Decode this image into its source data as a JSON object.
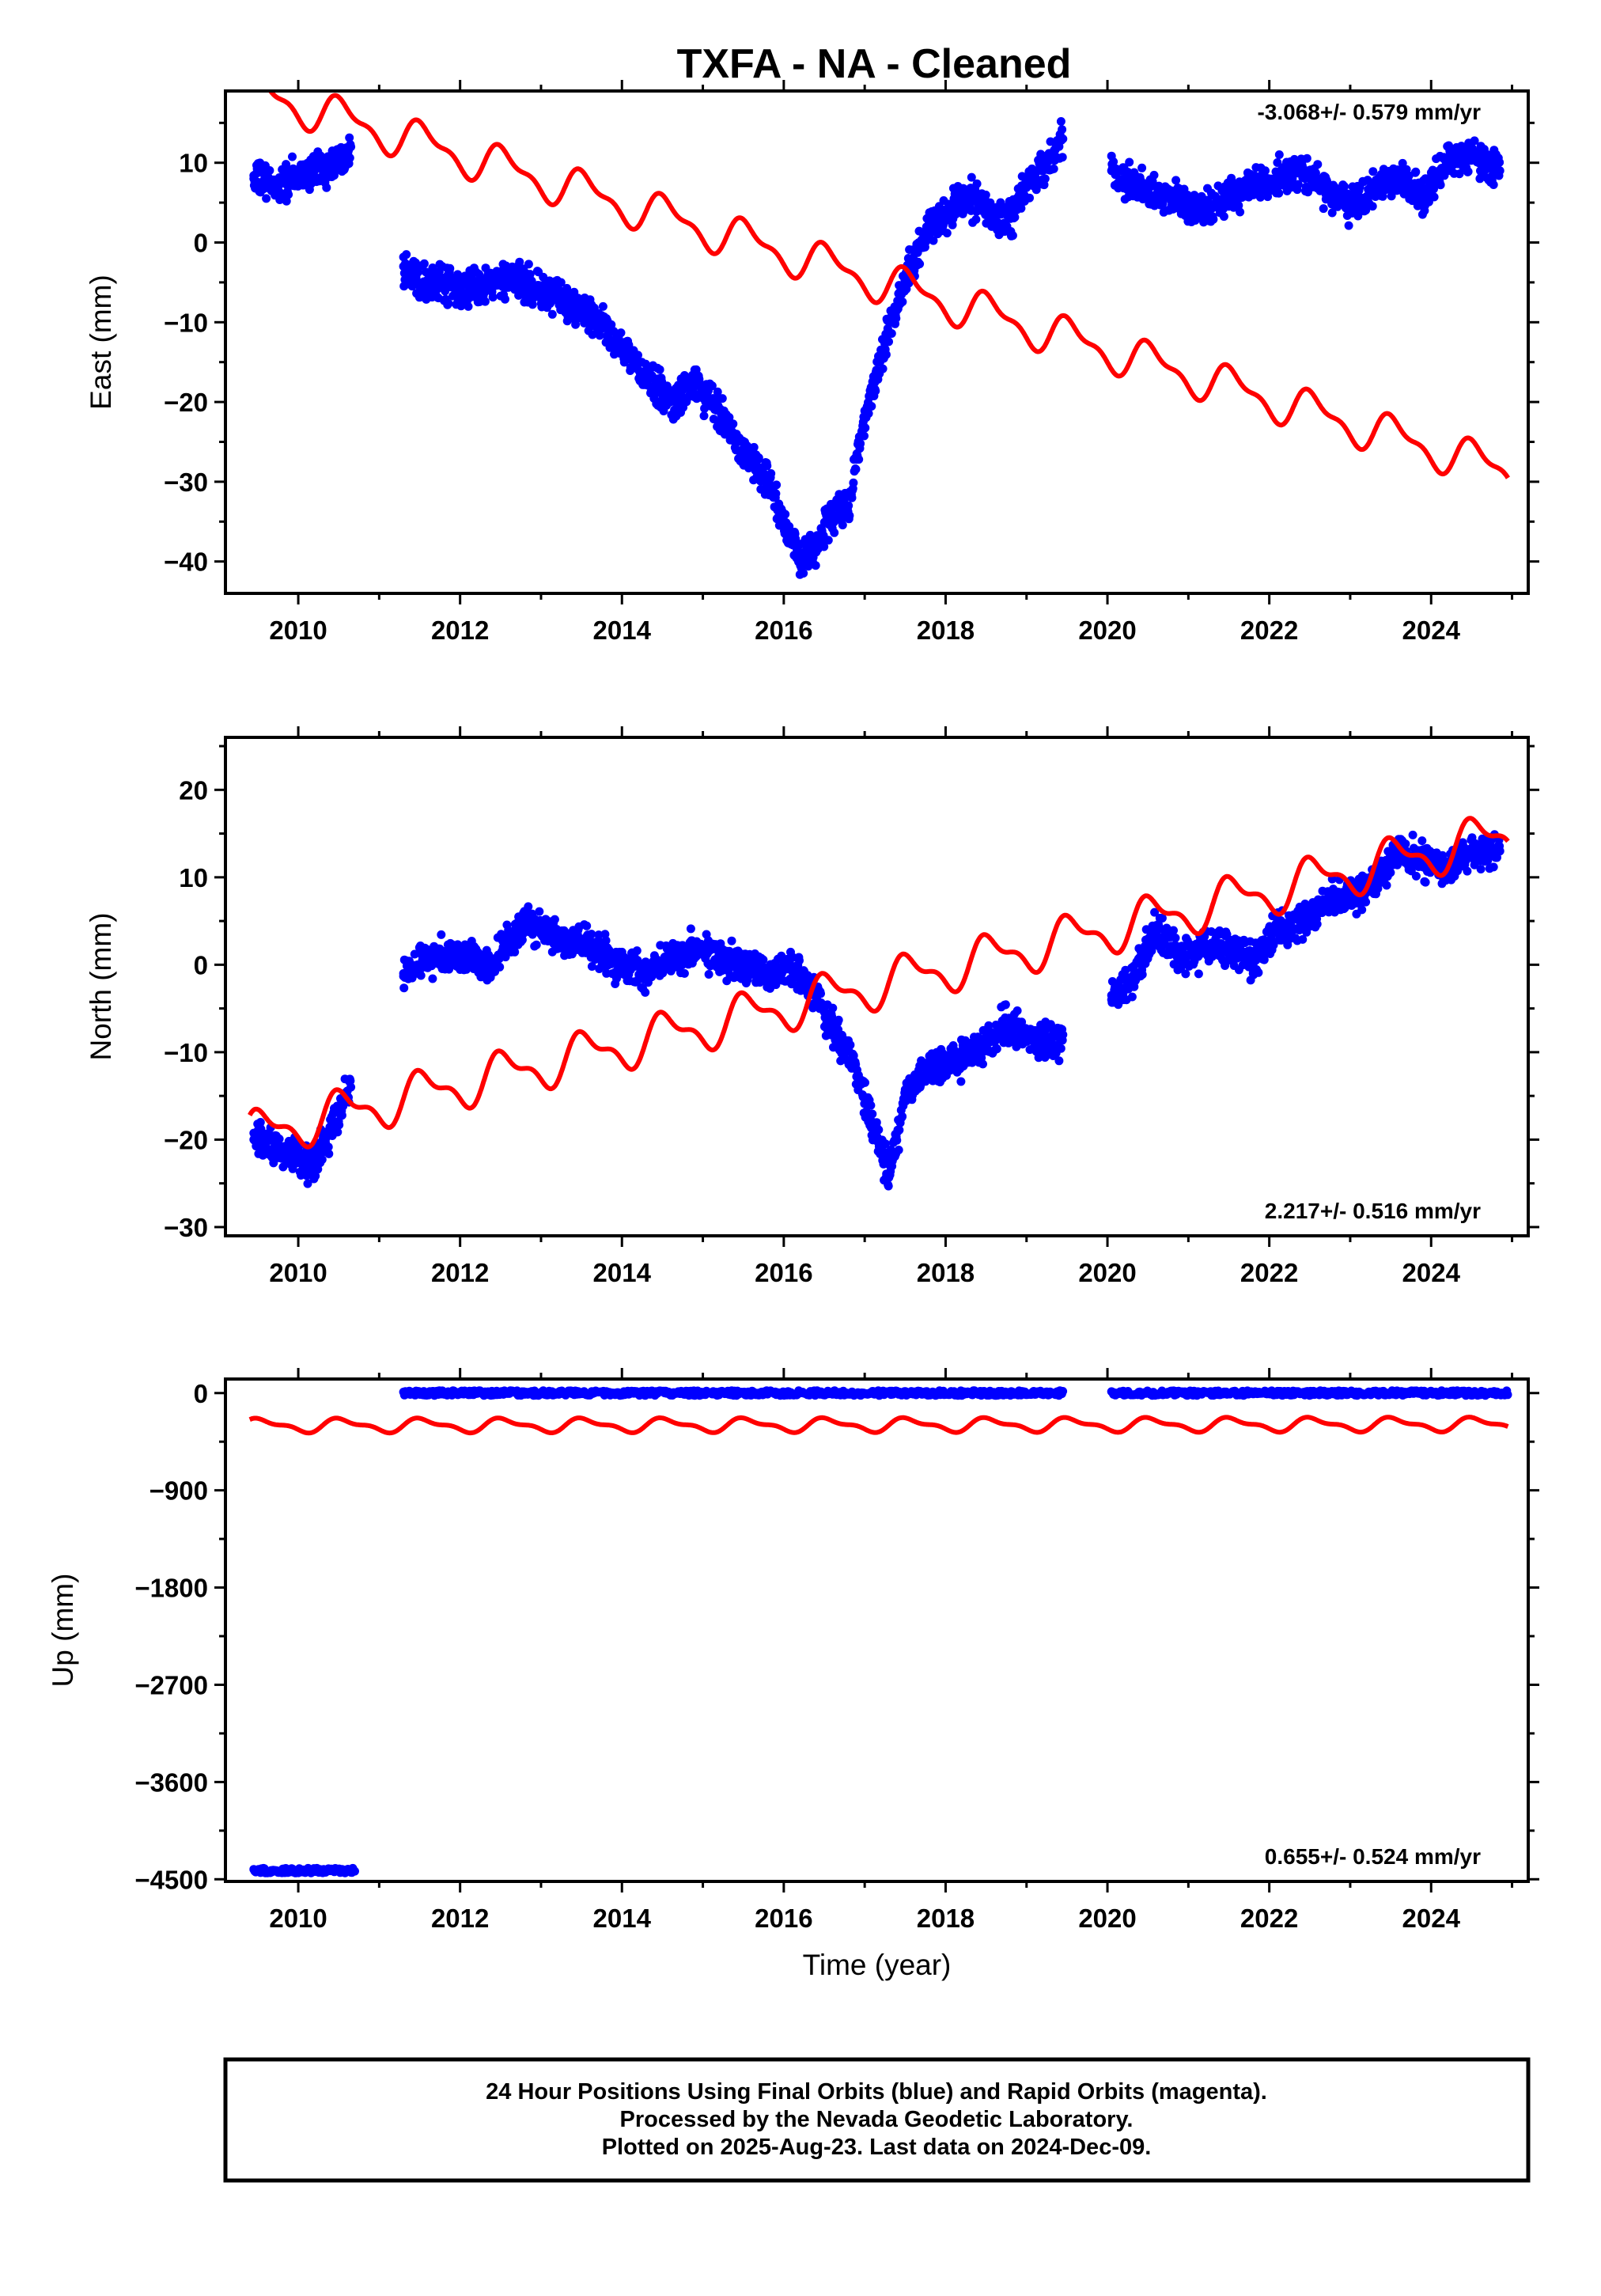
{
  "title": "TXFA  - NA - Cleaned",
  "footer": {
    "line1": "24 Hour Positions Using Final Orbits (blue) and Rapid Orbits (magenta).",
    "line2": "Processed by the Nevada Geodetic Laboratory.",
    "line3": "Plotted on 2025-Aug-23. Last data on 2024-Dec-09."
  },
  "colors": {
    "final": "#0000ff",
    "model": "#ff0000",
    "axis": "#000000"
  },
  "chart_data": [
    {
      "type": "scatter",
      "ylabel": "East (mm)",
      "xlabel": "",
      "rate_label": "-3.068+/- 0.579 mm/yr",
      "rate_position": "top-right",
      "xlim": [
        2009.1,
        2025.2
      ],
      "ylim": [
        -44,
        19
      ],
      "x_ticks": [
        2010,
        2012,
        2014,
        2016,
        2018,
        2020,
        2022,
        2024
      ],
      "y_ticks": [
        10,
        0,
        -10,
        -20,
        -30,
        -40
      ],
      "grid": false,
      "series": [
        {
          "kind": "points",
          "color": "#0000ff",
          "x": [
            2009.45,
            2009.7,
            2009.95,
            2010.2,
            2010.45,
            2010.65,
            2011.3,
            2011.6,
            2012.0,
            2012.4,
            2012.8,
            2013.2,
            2013.6,
            2014.0,
            2014.3,
            2014.6,
            2014.9,
            2015.2,
            2015.5,
            2015.8,
            2016.0,
            2016.2,
            2016.4,
            2016.6,
            2016.8,
            2017.0,
            2017.2,
            2017.4,
            2017.6,
            2017.8,
            2018.0,
            2018.2,
            2018.4,
            2018.6,
            2018.8,
            2019.0,
            2019.2,
            2019.45,
            2020.05,
            2020.3,
            2020.6,
            2020.9,
            2021.2,
            2021.5,
            2021.8,
            2022.1,
            2022.4,
            2022.7,
            2023.0,
            2023.3,
            2023.6,
            2023.9,
            2024.2,
            2024.5,
            2024.85
          ],
          "y": [
            8,
            7,
            8,
            9,
            10,
            12,
            -3,
            -5,
            -6,
            -5,
            -5,
            -7,
            -9,
            -13,
            -17,
            -20,
            -18,
            -21,
            -26,
            -30,
            -35,
            -40,
            -38,
            -34,
            -33,
            -22,
            -14,
            -8,
            -2,
            2,
            3,
            6,
            5,
            3,
            3,
            7,
            9,
            13,
            9,
            7,
            6,
            5,
            4,
            6,
            7,
            8,
            9,
            6,
            5,
            7,
            8,
            6,
            10,
            11,
            9
          ]
        },
        {
          "kind": "line",
          "color": "#ff0000",
          "name": "",
          "trend_rate": -3.068,
          "seasonal_amplitude": 2.2,
          "x": [
            2009.4,
            2011.0,
            2012.0,
            2013.0,
            2014.0,
            2015.0,
            2016.0,
            2017.0,
            2018.0,
            2019.0,
            2020.0,
            2021.0,
            2022.0,
            2023.0,
            2024.0,
            2024.95
          ],
          "y": [
            19.0,
            14.1,
            11.0,
            7.9,
            4.9,
            1.8,
            -1.3,
            -4.3,
            -7.4,
            -10.5,
            -13.5,
            -16.6,
            -19.7,
            -22.8,
            -25.8,
            -28.7
          ]
        }
      ]
    },
    {
      "type": "scatter",
      "ylabel": "North (mm)",
      "xlabel": "",
      "rate_label": "2.217+/- 0.516 mm/yr",
      "rate_position": "bottom-right",
      "xlim": [
        2009.1,
        2025.2
      ],
      "ylim": [
        -31,
        26
      ],
      "x_ticks": [
        2010,
        2012,
        2014,
        2016,
        2018,
        2020,
        2022,
        2024
      ],
      "y_ticks": [
        20,
        10,
        0,
        -10,
        -20,
        -30
      ],
      "grid": false,
      "series": [
        {
          "kind": "points",
          "color": "#0000ff",
          "x": [
            2009.45,
            2009.7,
            2009.95,
            2010.2,
            2010.45,
            2010.65,
            2011.3,
            2011.6,
            2012.0,
            2012.4,
            2012.8,
            2013.2,
            2013.6,
            2014.0,
            2014.3,
            2014.6,
            2014.9,
            2015.2,
            2015.5,
            2015.8,
            2016.0,
            2016.3,
            2016.6,
            2016.9,
            2017.1,
            2017.3,
            2017.5,
            2017.8,
            2018.1,
            2018.4,
            2018.7,
            2019.0,
            2019.3,
            2019.45,
            2020.05,
            2020.3,
            2020.6,
            2020.9,
            2021.2,
            2021.5,
            2021.8,
            2022.1,
            2022.4,
            2022.7,
            2023.0,
            2023.3,
            2023.6,
            2023.9,
            2024.2,
            2024.5,
            2024.85
          ],
          "y": [
            -20,
            -21,
            -22,
            -23,
            -18,
            -14,
            -1,
            1,
            1,
            0,
            5,
            3,
            2,
            0,
            -1,
            1,
            2,
            1,
            0,
            -1,
            0,
            -2,
            -7,
            -12,
            -18,
            -24,
            -15,
            -12,
            -11,
            -10,
            -7,
            -8,
            -9,
            -8,
            -4,
            -2,
            4,
            1,
            2,
            2,
            0,
            4,
            5,
            7,
            8,
            9,
            13,
            12,
            11,
            13,
            13
          ]
        },
        {
          "kind": "line",
          "color": "#ff0000",
          "name": "",
          "trend_rate": 2.217,
          "seasonal_amplitude": 2.3,
          "x": [
            2009.4,
            2011.0,
            2012.0,
            2013.0,
            2014.0,
            2015.0,
            2016.0,
            2017.0,
            2018.0,
            2019.0,
            2020.0,
            2021.0,
            2022.0,
            2023.0,
            2024.0,
            2024.95
          ],
          "y": [
            -19.5,
            -16.0,
            -13.8,
            -11.6,
            -9.4,
            -7.1,
            -4.9,
            -2.7,
            -0.5,
            1.7,
            4.0,
            6.2,
            8.4,
            10.6,
            12.8,
            14.9
          ]
        }
      ]
    },
    {
      "type": "scatter",
      "ylabel": "Up (mm)",
      "xlabel": "Time (year)",
      "rate_label": "0.655+/- 0.524 mm/yr",
      "rate_position": "bottom-right",
      "xlim": [
        2009.1,
        2025.2
      ],
      "ylim": [
        -4520,
        130
      ],
      "x_ticks": [
        2010,
        2012,
        2014,
        2016,
        2018,
        2020,
        2022,
        2024
      ],
      "y_ticks": [
        0,
        -900,
        -1800,
        -2700,
        -3600,
        -4500
      ],
      "grid": false,
      "series": [
        {
          "kind": "points",
          "color": "#0000ff",
          "segments": [
            {
              "x_start": 2009.45,
              "x_end": 2010.7,
              "y": -4420
            },
            {
              "x_start": 2011.3,
              "x_end": 2019.45,
              "y": 0
            },
            {
              "x_start": 2020.05,
              "x_end": 2024.95,
              "y": 0
            }
          ]
        },
        {
          "kind": "line",
          "color": "#ff0000",
          "name": "",
          "trend_rate": 0.655,
          "seasonal_amplitude": 55,
          "x": [
            2009.4,
            2024.95
          ],
          "y": [
            -300,
            -300
          ]
        }
      ]
    }
  ]
}
